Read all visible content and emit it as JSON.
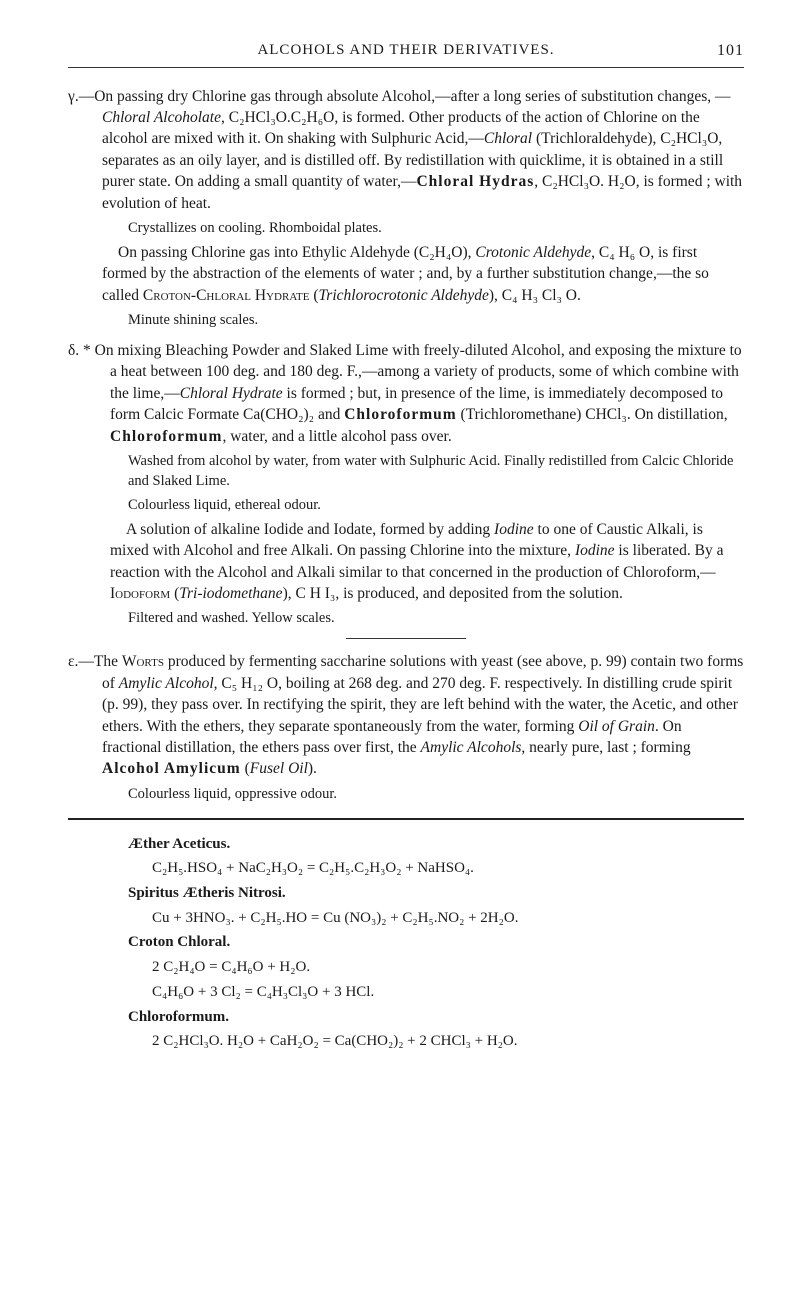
{
  "header": {
    "running": "ALCOHOLS AND THEIR DERIVATIVES.",
    "pageNo": "101"
  },
  "gamma": {
    "p1": "γ.—On passing dry Chlorine gas through absolute Alcohol,—after a long series of substitution changes, — Chloral Alcoholate, C₂HCl₃O.C₂H₆O, is formed. Other products of the action of Chlorine on the alcohol are mixed with it. On shaking with Sulphuric Acid,—Chloral (Trichloralde­hyde), C₂HCl₃O, separates as an oily layer, and is distilled off. By redistillation with quicklime, it is obtained in a still purer state. On adding a small quantity of water,—Chloral Hydras, C₂HCl₃O. H₂O, is formed ; with evolution of heat.",
    "crys": "Crystallizes on cooling. Rhomboidal plates.",
    "p2": "On passing Chlorine gas into Ethylic Aldehyde (C₂H₄O), Crotonic Aldehyde, C₄ H₆ O, is first formed by the abstraction of the elements of water ; and, by a further substitution change,—the so called Croton-Chloral Hydrate (Trichlorocrotonic Aldehyde), C₄ H₃ Cl₃ O.",
    "minute": "Minute shining scales."
  },
  "delta": {
    "p1": "δ. * On mixing Bleaching Powder and Slaked Lime with freely-diluted Alcohol, and exposing the mixture to a heat between 100 deg. and 180 deg. F.,—among a variety of products, some of which combine with the lime,—Chloral Hydrate is formed ; but, in presence of the lime, is immediately decomposed to form Calcic Formate Ca(CHO₂)₂ and Chloroformum (Trichloromethane) CHCl₃. On distillation, Chloroformum, water, and a little alcohol pass over.",
    "washed": "Washed from alcohol by water, from water with Sulphuric Acid. Finally redistilled from Calcic Chloride and Slaked Lime.",
    "colourless": "Colourless liquid, ethereal odour.",
    "p2": "A solution of alkaline Iodide and Iodate, formed by adding Iodine to one of Caustic Alkali, is mixed with Alcohol and free Alkali. On passing Chlorine into the mixture, Iodine is liberated. By a reaction with the Alcohol and Alkali similar to that concerned in the production of Chloroform,—Iodoform (Tri-iodomethane), C H I₃, is produced, and deposited from the solution.",
    "filtered": "Filtered and washed. Yellow scales."
  },
  "epsilon": {
    "p1": "ε.—The Worts produced by fermenting saccharine solutions with yeast (see above, p. 99) contain two forms of Amylic Alcohol, C₅ H₁₂ O, boiling at 268 deg. and 270 deg. F. respectively. In distilling crude spirit (p. 99), they pass over. In rectifying the spirit, they are left behind with the water, the Acetic, and other ethers. With the ethers, they separate spontaneously from the water, forming Oil of Grain. On fractional distillation, the ethers pass over first, the Amylic Alcohols, nearly pure, last ; forming Alcohol Amylicum (Fusel Oil).",
    "colourless": "Colourless liquid, oppressive odour."
  },
  "formulae": {
    "aether_head": "Æther Aceticus.",
    "aether_eq": "C₂H₅.HSO₄ + NaC₂H₃O₂ = C₂H₅.C₂H₃O₂ + NaHSO₄.",
    "spiritus_head": "Spiritus Ætheris Nitrosi.",
    "spiritus_eq": "Cu + 3HNO₃. + C₂H₅.HO = Cu (NO₃)₂ + C₂H₅.NO₂ + 2H₂O.",
    "croton_head": "Croton Chloral.",
    "croton_eq1": "2 C₂H₄O = C₄H₆O + H₂O.",
    "croton_eq2": "C₄H₆O + 3 Cl₂ = C₄H₃Cl₃O + 3 HCl.",
    "chloro_head": "Chloroformum.",
    "chloro_eq": "2 C₂HCl₃O. H₂O + CaH₂O₂ = Ca(CHO₂)₂ + 2 CHCl₃ + H₂O."
  }
}
